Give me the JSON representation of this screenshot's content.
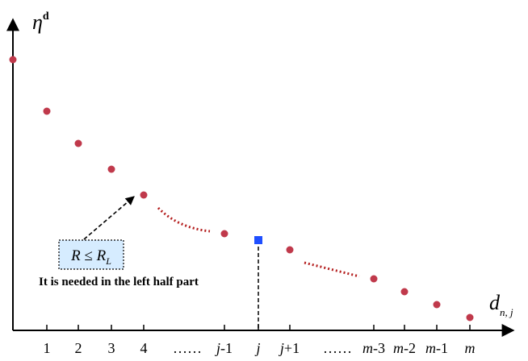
{
  "chart_data": {
    "type": "scatter",
    "y_axis_label": {
      "base": "η",
      "superscript": "d"
    },
    "x_axis_label": {
      "base": "d",
      "subscript": "n, j"
    },
    "categories": [
      "1",
      "2",
      "3",
      "4",
      "……",
      "j-1",
      "j",
      "j+1",
      "……",
      "m-3",
      "m-2",
      "m-1",
      "m"
    ],
    "points": [
      {
        "x": "",
        "y": 0.84
      },
      {
        "x": "1",
        "y": 0.68
      },
      {
        "x": "2",
        "y": 0.58
      },
      {
        "x": "3",
        "y": 0.5
      },
      {
        "x": "4",
        "y": 0.42
      },
      {
        "x": "j-1",
        "y": 0.3
      },
      {
        "x": "j+1",
        "y": 0.25
      },
      {
        "x": "m-3",
        "y": 0.16
      },
      {
        "x": "m-2",
        "y": 0.12
      },
      {
        "x": "m-1",
        "y": 0.08
      },
      {
        "x": "m",
        "y": 0.04
      }
    ],
    "highlight": {
      "x": "j",
      "y": 0.28,
      "shape": "square",
      "color": "#1f4fff",
      "dropline": true
    },
    "dotted_trends": [
      {
        "from": "4",
        "to": "j-1",
        "color": "#b41e1e"
      },
      {
        "from": "j+1",
        "to": "m-3",
        "color": "#b41e1e"
      }
    ],
    "annotation": {
      "box_text": {
        "a": "R",
        "op": "≤",
        "b": "R",
        "sub": "L"
      },
      "note": "It is needed in the left half part",
      "box_fill": "#d6ecff",
      "arrow_target_x": "4"
    },
    "point_color": "#c0394b",
    "y_range": [
      0,
      1
    ],
    "grid": false
  }
}
